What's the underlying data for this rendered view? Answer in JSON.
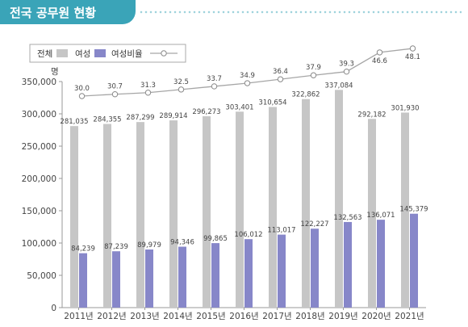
{
  "header": {
    "title": "전국 공무원 현황"
  },
  "colors": {
    "total": "#c6c6c6",
    "female": "#8787c9",
    "line": "#a6a6a6",
    "title_bg": "#3aa4b8"
  },
  "chart_data": {
    "type": "bar",
    "title": "전국 공무원 현황",
    "ylabel": "명",
    "ylim": [
      0,
      350000
    ],
    "yticks": [
      0,
      50000,
      100000,
      150000,
      200000,
      250000,
      300000,
      350000
    ],
    "ytick_labels": [
      "0",
      "50,000",
      "100,000",
      "150,000",
      "200,000",
      "250,000",
      "300,000",
      "350,000"
    ],
    "categories": [
      "2011년",
      "2012년",
      "2013년",
      "2014년",
      "2015년",
      "2016년",
      "2017년",
      "2018년",
      "2019년",
      "2020년",
      "2021년"
    ],
    "legend_position": "top-left",
    "grid": false,
    "series": [
      {
        "name": "전체",
        "type": "bar",
        "values": [
          281035,
          284355,
          287299,
          289914,
          296273,
          303401,
          310654,
          322862,
          337084,
          292182,
          301930
        ],
        "labels": [
          "281,035",
          "284,355",
          "287,299",
          "289,914",
          "296,273",
          "303,401",
          "310,654",
          "322,862",
          "337,084",
          "292,182",
          "301,930"
        ]
      },
      {
        "name": "여성",
        "type": "bar",
        "values": [
          84239,
          87239,
          89979,
          94346,
          99865,
          106012,
          113017,
          122227,
          132563,
          136071,
          145379
        ],
        "labels": [
          "84,239",
          "87,239",
          "89,979",
          "94,346",
          "99,865",
          "106,012",
          "113,017",
          "122,227",
          "132,563",
          "136,071",
          "145,379"
        ]
      },
      {
        "name": "여성비율",
        "type": "line",
        "values": [
          30.0,
          30.7,
          31.3,
          32.5,
          33.7,
          34.9,
          36.4,
          37.9,
          39.3,
          46.6,
          48.1
        ],
        "labels": [
          "30.0",
          "30.7",
          "31.3",
          "32.5",
          "33.7",
          "34.9",
          "36.4",
          "37.9",
          "39.3",
          "46.6",
          "48.1"
        ]
      }
    ]
  }
}
